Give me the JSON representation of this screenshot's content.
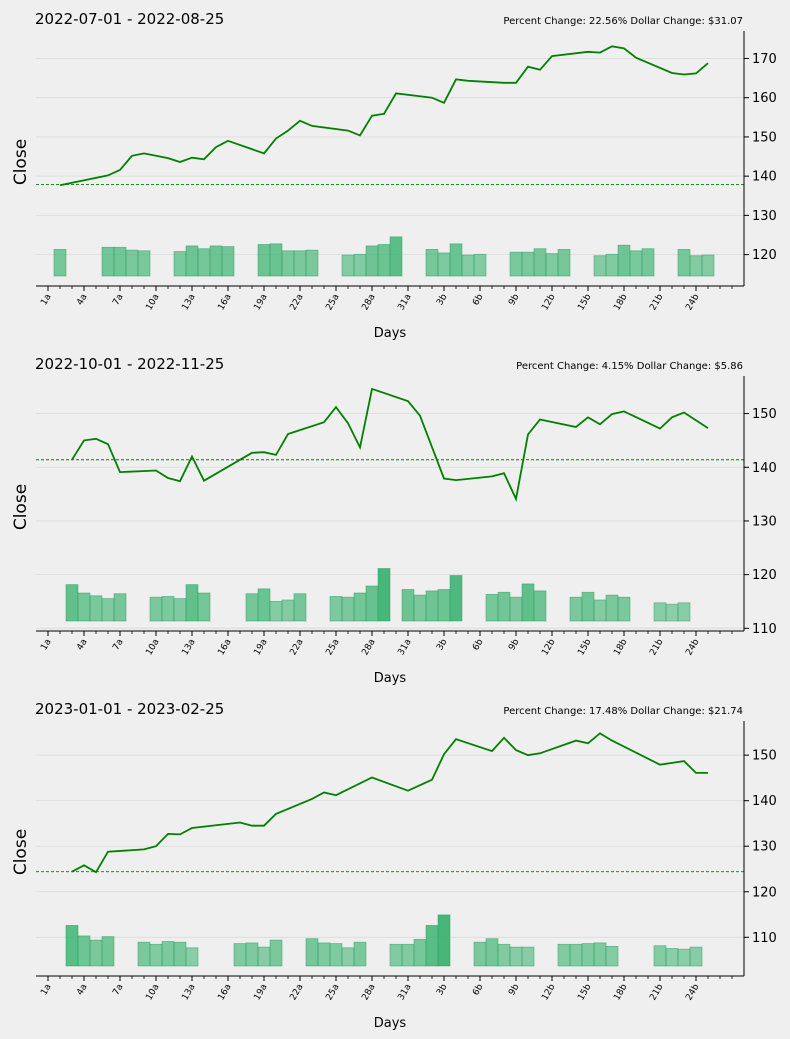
{
  "chart_data": [
    {
      "type": "line",
      "title": "2022-07-01 - 2022-08-25",
      "change_text": "Percent Change: 22.56%  Dollar Change: $31.07",
      "xlabel": "Days",
      "ylabel": "Close",
      "x_ticks": [
        "1a",
        "4a",
        "7a",
        "10a",
        "13a",
        "16a",
        "19a",
        "22a",
        "25a",
        "28a",
        "31a",
        "3b",
        "6b",
        "9b",
        "12b",
        "15b",
        "18b",
        "21b",
        "24b"
      ],
      "xlim": [
        -1,
        58
      ],
      "ylim": [
        112,
        177
      ],
      "y_ticks": [
        120,
        130,
        140,
        150,
        160,
        170
      ],
      "reference_line": 137.9,
      "series": [
        {
          "values": [
            [
              1,
              137.7
            ],
            [
              5,
              140.2
            ],
            [
              6,
              141.6
            ],
            [
              7,
              145.2
            ],
            [
              8,
              145.8
            ],
            [
              10,
              144.6
            ],
            [
              11,
              143.6
            ],
            [
              12,
              144.7
            ],
            [
              13,
              144.3
            ],
            [
              14,
              147.4
            ],
            [
              15,
              149.0
            ],
            [
              18,
              145.8
            ],
            [
              19,
              149.6
            ],
            [
              20,
              151.6
            ],
            [
              21,
              154.1
            ],
            [
              22,
              152.8
            ],
            [
              25,
              151.6
            ],
            [
              26,
              150.4
            ],
            [
              27,
              155.4
            ],
            [
              28,
              155.9
            ],
            [
              29,
              161.1
            ],
            [
              32,
              160.0
            ],
            [
              33,
              158.7
            ],
            [
              34,
              164.7
            ],
            [
              35,
              164.3
            ],
            [
              38,
              163.8
            ],
            [
              39,
              163.8
            ],
            [
              40,
              167.9
            ],
            [
              41,
              167.1
            ],
            [
              42,
              170.6
            ],
            [
              45,
              171.7
            ],
            [
              46,
              171.5
            ],
            [
              47,
              173.1
            ],
            [
              48,
              172.6
            ],
            [
              49,
              170.2
            ],
            [
              52,
              166.3
            ],
            [
              53,
              165.9
            ],
            [
              54,
              166.2
            ],
            [
              55,
              168.8
            ]
          ]
        }
      ],
      "volume_bars": [
        [
          1,
          0.38
        ],
        [
          5,
          0.41
        ],
        [
          6,
          0.41
        ],
        [
          7,
          0.37
        ],
        [
          8,
          0.36
        ],
        [
          11,
          0.35
        ],
        [
          12,
          0.43
        ],
        [
          13,
          0.39
        ],
        [
          14,
          0.43
        ],
        [
          15,
          0.42
        ],
        [
          18,
          0.45
        ],
        [
          19,
          0.46
        ],
        [
          20,
          0.36
        ],
        [
          21,
          0.36
        ],
        [
          22,
          0.37
        ],
        [
          25,
          0.3
        ],
        [
          26,
          0.31
        ],
        [
          27,
          0.43
        ],
        [
          28,
          0.45
        ],
        [
          29,
          0.56
        ],
        [
          32,
          0.38
        ],
        [
          33,
          0.33
        ],
        [
          34,
          0.46
        ],
        [
          35,
          0.3
        ],
        [
          36,
          0.31
        ],
        [
          39,
          0.34
        ],
        [
          40,
          0.34
        ],
        [
          41,
          0.39
        ],
        [
          42,
          0.32
        ],
        [
          43,
          0.38
        ],
        [
          46,
          0.29
        ],
        [
          47,
          0.31
        ],
        [
          48,
          0.44
        ],
        [
          49,
          0.36
        ],
        [
          50,
          0.39
        ],
        [
          53,
          0.38
        ],
        [
          54,
          0.29
        ],
        [
          55,
          0.3
        ]
      ]
    },
    {
      "type": "line",
      "title": "2022-10-01 - 2022-11-25",
      "change_text": "Percent Change: 4.15%  Dollar Change: $5.86",
      "xlabel": "Days",
      "ylabel": "Close",
      "x_ticks": [
        "1a",
        "4a",
        "7a",
        "10a",
        "13a",
        "16a",
        "19a",
        "22a",
        "25a",
        "28a",
        "31a",
        "3b",
        "6b",
        "9b",
        "12b",
        "15b",
        "18b",
        "21b",
        "24b"
      ],
      "xlim": [
        -1,
        58
      ],
      "ylim": [
        109.5,
        157
      ],
      "y_ticks": [
        110,
        120,
        130,
        140,
        150
      ],
      "reference_line": 141.4,
      "series": [
        {
          "values": [
            [
              2,
              141.4
            ],
            [
              3,
              145.0
            ],
            [
              4,
              145.3
            ],
            [
              5,
              144.3
            ],
            [
              6,
              139.1
            ],
            [
              9,
              139.4
            ],
            [
              10,
              138.0
            ],
            [
              11,
              137.4
            ],
            [
              12,
              142.0
            ],
            [
              13,
              137.5
            ],
            [
              17,
              142.7
            ],
            [
              18,
              142.8
            ],
            [
              19,
              142.3
            ],
            [
              20,
              146.2
            ],
            [
              23,
              148.4
            ],
            [
              24,
              151.2
            ],
            [
              25,
              148.2
            ],
            [
              26,
              143.7
            ],
            [
              27,
              154.6
            ],
            [
              30,
              152.3
            ],
            [
              31,
              149.6
            ],
            [
              33,
              137.9
            ],
            [
              34,
              137.6
            ],
            [
              37,
              138.3
            ],
            [
              38,
              138.9
            ],
            [
              39,
              134.1
            ],
            [
              40,
              146.1
            ],
            [
              41,
              148.9
            ],
            [
              44,
              147.5
            ],
            [
              45,
              149.3
            ],
            [
              46,
              148.0
            ],
            [
              47,
              149.9
            ],
            [
              48,
              150.4
            ],
            [
              51,
              147.2
            ],
            [
              52,
              149.3
            ],
            [
              53,
              150.2
            ],
            [
              55,
              147.3
            ]
          ]
        }
      ],
      "volume_bars": [
        [
          2,
          0.52
        ],
        [
          3,
          0.4
        ],
        [
          4,
          0.36
        ],
        [
          5,
          0.32
        ],
        [
          6,
          0.39
        ],
        [
          9,
          0.34
        ],
        [
          10,
          0.35
        ],
        [
          11,
          0.32
        ],
        [
          12,
          0.52
        ],
        [
          13,
          0.4
        ],
        [
          17,
          0.39
        ],
        [
          18,
          0.46
        ],
        [
          19,
          0.28
        ],
        [
          20,
          0.3
        ],
        [
          21,
          0.39
        ],
        [
          24,
          0.35
        ],
        [
          25,
          0.34
        ],
        [
          26,
          0.4
        ],
        [
          27,
          0.5
        ],
        [
          28,
          0.75
        ],
        [
          30,
          0.45
        ],
        [
          31,
          0.37
        ],
        [
          32,
          0.43
        ],
        [
          33,
          0.45
        ],
        [
          34,
          0.65
        ],
        [
          37,
          0.38
        ],
        [
          38,
          0.41
        ],
        [
          39,
          0.34
        ],
        [
          40,
          0.53
        ],
        [
          41,
          0.43
        ],
        [
          44,
          0.34
        ],
        [
          45,
          0.41
        ],
        [
          46,
          0.3
        ],
        [
          47,
          0.37
        ],
        [
          48,
          0.34
        ],
        [
          51,
          0.26
        ],
        [
          52,
          0.24
        ],
        [
          53,
          0.26
        ]
      ]
    },
    {
      "type": "line",
      "title": "2023-01-01 - 2023-02-25",
      "change_text": "Percent Change: 17.48%  Dollar Change: $21.74",
      "xlabel": "Days",
      "ylabel": "Close",
      "x_ticks": [
        "1a",
        "4a",
        "7a",
        "10a",
        "13a",
        "16a",
        "19a",
        "22a",
        "25a",
        "28a",
        "31a",
        "3b",
        "6b",
        "9b",
        "12b",
        "15b",
        "18b",
        "21b",
        "24b"
      ],
      "xlim": [
        -1,
        58
      ],
      "ylim": [
        101.5,
        157.5
      ],
      "y_ticks": [
        110,
        120,
        130,
        140,
        150
      ],
      "reference_line": 124.4,
      "series": [
        {
          "values": [
            [
              2,
              124.4
            ],
            [
              3,
              125.8
            ],
            [
              4,
              124.3
            ],
            [
              5,
              128.8
            ],
            [
              8,
              129.3
            ],
            [
              9,
              130.0
            ],
            [
              10,
              132.7
            ],
            [
              11,
              132.6
            ],
            [
              12,
              134.0
            ],
            [
              16,
              135.2
            ],
            [
              17,
              134.5
            ],
            [
              18,
              134.5
            ],
            [
              19,
              137.1
            ],
            [
              22,
              140.4
            ],
            [
              23,
              141.8
            ],
            [
              24,
              141.2
            ],
            [
              27,
              145.1
            ],
            [
              30,
              142.2
            ],
            [
              32,
              144.6
            ],
            [
              33,
              150.2
            ],
            [
              34,
              153.5
            ],
            [
              37,
              150.9
            ],
            [
              38,
              153.8
            ],
            [
              39,
              151.1
            ],
            [
              40,
              150.0
            ],
            [
              41,
              150.4
            ],
            [
              44,
              153.2
            ],
            [
              45,
              152.6
            ],
            [
              46,
              154.8
            ],
            [
              47,
              153.2
            ],
            [
              51,
              147.9
            ],
            [
              53,
              148.7
            ],
            [
              54,
              146.1
            ],
            [
              55,
              146.1
            ]
          ]
        }
      ],
      "volume_bars": [
        [
          2,
          0.58
        ],
        [
          3,
          0.43
        ],
        [
          4,
          0.37
        ],
        [
          5,
          0.42
        ],
        [
          8,
          0.34
        ],
        [
          9,
          0.31
        ],
        [
          10,
          0.35
        ],
        [
          11,
          0.34
        ],
        [
          12,
          0.26
        ],
        [
          16,
          0.32
        ],
        [
          17,
          0.33
        ],
        [
          18,
          0.27
        ],
        [
          19,
          0.37
        ],
        [
          22,
          0.39
        ],
        [
          23,
          0.33
        ],
        [
          24,
          0.32
        ],
        [
          25,
          0.26
        ],
        [
          26,
          0.34
        ],
        [
          29,
          0.31
        ],
        [
          30,
          0.31
        ],
        [
          31,
          0.38
        ],
        [
          32,
          0.58
        ],
        [
          33,
          0.73
        ],
        [
          36,
          0.34
        ],
        [
          37,
          0.39
        ],
        [
          38,
          0.31
        ],
        [
          39,
          0.27
        ],
        [
          40,
          0.27
        ],
        [
          43,
          0.31
        ],
        [
          44,
          0.31
        ],
        [
          45,
          0.32
        ],
        [
          46,
          0.33
        ],
        [
          47,
          0.28
        ],
        [
          51,
          0.29
        ],
        [
          52,
          0.25
        ],
        [
          53,
          0.24
        ],
        [
          54,
          0.27
        ]
      ]
    }
  ]
}
